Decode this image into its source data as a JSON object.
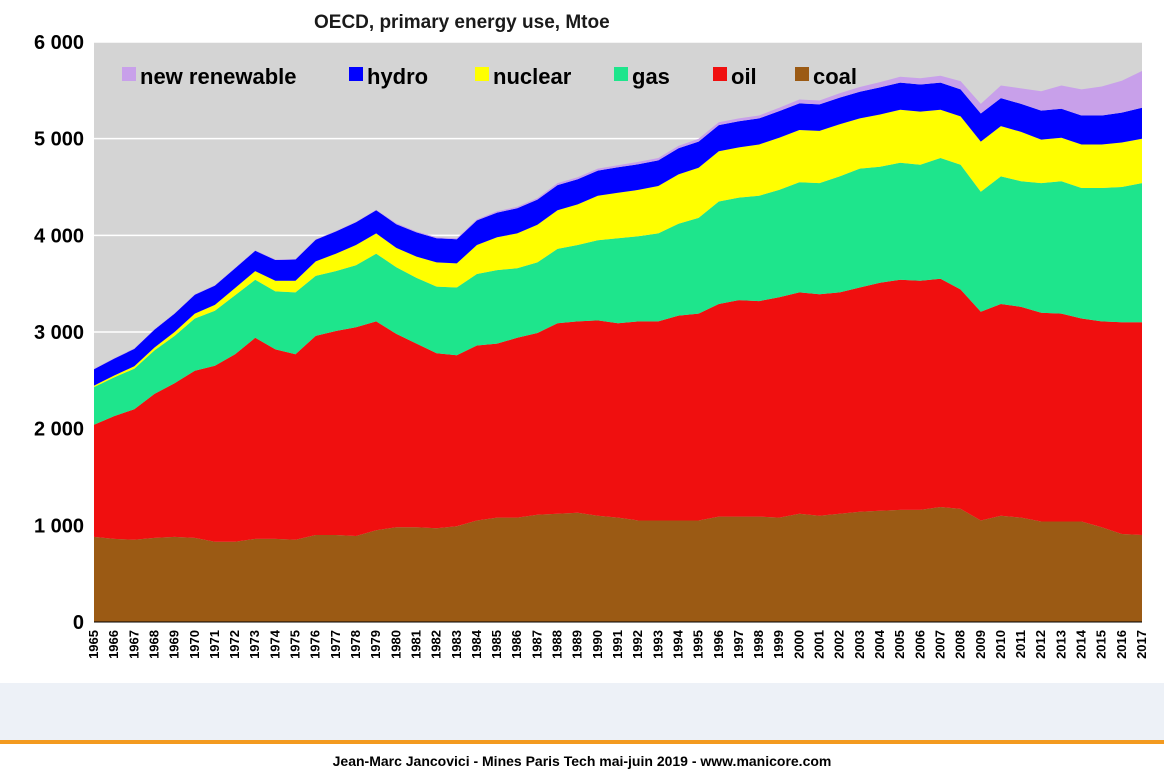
{
  "footer": {
    "credit": "Jean-Marc Jancovici - Mines Paris Tech mai-juin 2019 - www.manicore.com"
  },
  "chart_data": {
    "type": "area",
    "stacked": true,
    "title": "OECD, primary energy use, Mtoe",
    "xlabel": "",
    "ylabel": "",
    "ylim": [
      0,
      6000
    ],
    "yticks": [
      0,
      1000,
      2000,
      3000,
      4000,
      5000,
      6000
    ],
    "ytick_labels": [
      "0",
      "1 000",
      "2 000",
      "3 000",
      "4 000",
      "5 000",
      "6 000"
    ],
    "grid": "horizontal",
    "legend_position": "top",
    "plot_background": "#d4d4d4",
    "x": [
      "1965",
      "1966",
      "1967",
      "1968",
      "1969",
      "1970",
      "1971",
      "1972",
      "1973",
      "1974",
      "1975",
      "1976",
      "1977",
      "1978",
      "1979",
      "1980",
      "1981",
      "1982",
      "1983",
      "1984",
      "1985",
      "1986",
      "1987",
      "1988",
      "1989",
      "1990",
      "1991",
      "1992",
      "1993",
      "1994",
      "1995",
      "1996",
      "1997",
      "1998",
      "1999",
      "2000",
      "2001",
      "2002",
      "2003",
      "2004",
      "2005",
      "2006",
      "2007",
      "2008",
      "2009",
      "2010",
      "2011",
      "2012",
      "2013",
      "2014",
      "2015",
      "2016",
      "2017"
    ],
    "series": [
      {
        "name": "coal",
        "color": "#9b5a14",
        "values": [
          880,
          860,
          850,
          870,
          880,
          870,
          830,
          830,
          860,
          860,
          850,
          900,
          900,
          890,
          950,
          980,
          980,
          970,
          990,
          1050,
          1080,
          1080,
          1110,
          1120,
          1130,
          1100,
          1080,
          1050,
          1050,
          1050,
          1050,
          1090,
          1090,
          1090,
          1080,
          1120,
          1100,
          1120,
          1140,
          1150,
          1160,
          1160,
          1190,
          1170,
          1050,
          1100,
          1080,
          1040,
          1040,
          1040,
          980,
          910,
          900
        ]
      },
      {
        "name": "oil",
        "color": "#f00f0f",
        "values": [
          1160,
          1270,
          1350,
          1490,
          1590,
          1730,
          1820,
          1940,
          2080,
          1960,
          1920,
          2060,
          2110,
          2160,
          2160,
          2000,
          1900,
          1810,
          1770,
          1810,
          1800,
          1860,
          1880,
          1970,
          1980,
          2020,
          2010,
          2060,
          2060,
          2120,
          2140,
          2200,
          2240,
          2230,
          2280,
          2290,
          2290,
          2290,
          2320,
          2360,
          2380,
          2370,
          2360,
          2270,
          2160,
          2190,
          2180,
          2160,
          2150,
          2100,
          2130,
          2190,
          2200
        ]
      },
      {
        "name": "gas",
        "color": "#1ee58c",
        "values": [
          390,
          400,
          420,
          450,
          490,
          540,
          570,
          610,
          600,
          600,
          640,
          620,
          620,
          640,
          700,
          690,
          680,
          690,
          700,
          740,
          760,
          720,
          730,
          770,
          790,
          830,
          880,
          880,
          910,
          950,
          990,
          1060,
          1060,
          1090,
          1110,
          1140,
          1150,
          1200,
          1230,
          1200,
          1210,
          1200,
          1250,
          1290,
          1240,
          1320,
          1300,
          1340,
          1370,
          1350,
          1380,
          1400,
          1440
        ]
      },
      {
        "name": "nuclear",
        "color": "#ffff00",
        "values": [
          15,
          20,
          25,
          30,
          40,
          50,
          60,
          75,
          90,
          110,
          120,
          150,
          180,
          210,
          210,
          200,
          220,
          250,
          250,
          300,
          340,
          360,
          390,
          400,
          420,
          460,
          470,
          480,
          490,
          510,
          520,
          520,
          520,
          530,
          540,
          540,
          540,
          540,
          520,
          540,
          550,
          550,
          500,
          500,
          520,
          520,
          510,
          450,
          450,
          450,
          450,
          460,
          460
        ]
      },
      {
        "name": "hydro",
        "color": "#0000ff",
        "values": [
          170,
          175,
          180,
          185,
          190,
          195,
          200,
          205,
          210,
          215,
          220,
          225,
          230,
          235,
          240,
          245,
          250,
          250,
          250,
          255,
          255,
          260,
          260,
          260,
          260,
          260,
          265,
          265,
          265,
          270,
          270,
          270,
          270,
          270,
          275,
          275,
          275,
          275,
          275,
          280,
          280,
          280,
          280,
          280,
          290,
          290,
          290,
          300,
          300,
          300,
          300,
          310,
          320
        ]
      },
      {
        "name": "new renewable",
        "color": "#c8a0ea",
        "values": [
          5,
          5,
          5,
          5,
          5,
          5,
          5,
          5,
          5,
          5,
          5,
          5,
          5,
          5,
          5,
          10,
          10,
          10,
          10,
          10,
          15,
          15,
          15,
          20,
          20,
          20,
          20,
          25,
          25,
          25,
          30,
          30,
          30,
          30,
          35,
          40,
          40,
          45,
          50,
          55,
          60,
          65,
          70,
          85,
          100,
          130,
          160,
          200,
          240,
          270,
          300,
          330,
          380
        ]
      }
    ]
  }
}
